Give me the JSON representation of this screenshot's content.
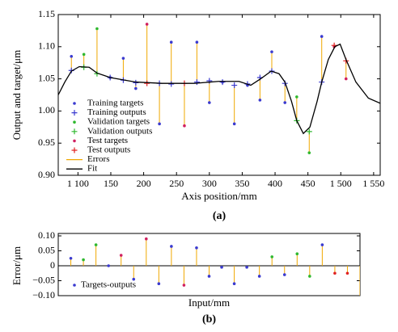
{
  "chart_data": [
    {
      "type": "scatter-errors",
      "xlabel": "Axis position/mm",
      "ylabel": "Output and target/μm",
      "caption": "(a)",
      "xlim": [
        1070,
        1560
      ],
      "ylim": [
        0.9,
        1.15
      ],
      "xticks": [
        {
          "value": 1100,
          "label": "1 100"
        },
        {
          "value": 1150,
          "label": "150"
        },
        {
          "value": 1200,
          "label": "200"
        },
        {
          "value": 1250,
          "label": "250"
        },
        {
          "value": 1300,
          "label": "300"
        },
        {
          "value": 1350,
          "label": "350"
        },
        {
          "value": 1400,
          "label": "400"
        },
        {
          "value": 1450,
          "label": "450"
        },
        {
          "value": 1500,
          "label": "1 500"
        },
        {
          "value": 1550,
          "label": "1 550"
        }
      ],
      "yticks": [
        {
          "value": 0.9,
          "label": "0.90"
        },
        0.95,
        {
          "value": 1.0,
          "label": "1.00"
        },
        1.05,
        {
          "value": 1.1,
          "label": "1.10"
        },
        1.15
      ],
      "series": [
        {
          "name": "Training targets",
          "color": "#3a3ad0",
          "marker": "dot",
          "x": [
            1090,
            1149,
            1169,
            1188,
            1224,
            1242,
            1281,
            1300,
            1320,
            1338,
            1358,
            1377,
            1395,
            1415,
            1471
          ],
          "values": [
            1.085,
            1.052,
            1.082,
            1.035,
            0.98,
            1.107,
            1.107,
            1.013,
            1.045,
            0.98,
            1.04,
            1.017,
            1.092,
            1.013,
            1.116
          ]
        },
        {
          "name": "Training outputs",
          "color": "#3a3ad0",
          "marker": "plus",
          "x": [
            1090,
            1149,
            1169,
            1188,
            1224,
            1242,
            1281,
            1300,
            1320,
            1338,
            1358,
            1377,
            1395,
            1415,
            1471
          ],
          "values": [
            1.063,
            1.052,
            1.048,
            1.044,
            1.043,
            1.042,
            1.045,
            1.047,
            1.045,
            1.04,
            1.042,
            1.052,
            1.062,
            1.043,
            1.045
          ]
        },
        {
          "name": "Validation targets",
          "color": "#2fb82f",
          "marker": "dot",
          "x": [
            1109,
            1129,
            1433,
            1452
          ],
          "values": [
            1.088,
            1.128,
            1.022,
            0.935
          ]
        },
        {
          "name": "Validation outputs",
          "color": "#2fb82f",
          "marker": "plus",
          "x": [
            1109,
            1129,
            1433,
            1452
          ],
          "values": [
            1.068,
            1.058,
            0.985,
            0.968
          ]
        },
        {
          "name": "Test targets",
          "color": "#d02060",
          "marker": "dot",
          "x": [
            1205,
            1262,
            1490,
            1508
          ],
          "values": [
            1.135,
            0.977,
            1.1,
            1.05
          ]
        },
        {
          "name": "Test outputs",
          "color": "#e02020",
          "marker": "plus",
          "x": [
            1205,
            1262,
            1490,
            1508
          ],
          "values": [
            1.043,
            1.043,
            1.102,
            1.078
          ]
        },
        {
          "name": "Errors",
          "color": "#f0a800",
          "marker": "errors"
        },
        {
          "name": "Fit",
          "color": "#000000",
          "marker": "line",
          "x": [
            1070,
            1080,
            1090,
            1102,
            1117,
            1129,
            1149,
            1188,
            1228,
            1277,
            1314,
            1345,
            1363,
            1378,
            1394,
            1406,
            1415,
            1425,
            1433,
            1443,
            1453,
            1464,
            1471,
            1481,
            1491,
            1499,
            1508,
            1523,
            1542,
            1560
          ],
          "values": [
            1.025,
            1.045,
            1.062,
            1.069,
            1.068,
            1.059,
            1.052,
            1.045,
            1.043,
            1.043,
            1.046,
            1.046,
            1.04,
            1.05,
            1.062,
            1.058,
            1.045,
            1.015,
            0.985,
            0.965,
            0.975,
            1.015,
            1.045,
            1.08,
            1.1,
            1.104,
            1.08,
            1.045,
            1.02,
            1.012
          ]
        }
      ]
    },
    {
      "type": "stem",
      "xlabel": "Input/mm",
      "ylabel": "Error/μm",
      "caption": "(b)",
      "xlim": [
        0,
        24
      ],
      "ylim": [
        -0.1,
        0.1
      ],
      "yticks": [
        {
          "value": -0.1,
          "label": "−0.10"
        },
        {
          "value": -0.05,
          "label": "−0.05"
        },
        0,
        0.05,
        {
          "value": 0.1,
          "label": "0.10"
        }
      ],
      "stem_color": "#f0a800",
      "series": [
        {
          "name": "Targets-outputs",
          "color": "#3a3ad0",
          "x": [
            1,
            2,
            3,
            4,
            5,
            6,
            7,
            8,
            9,
            10,
            11,
            12,
            13,
            14,
            15,
            16,
            17,
            18,
            19,
            20,
            21,
            22,
            23,
            24
          ],
          "values": [
            0.025,
            0.02,
            0.07,
            0.0,
            0.035,
            -0.045,
            0.09,
            -0.06,
            0.065,
            -0.065,
            0.06,
            -0.035,
            -0.005,
            -0.06,
            -0.005,
            -0.035,
            0.03,
            -0.03,
            0.04,
            -0.035,
            0.07,
            -0.025,
            -0.025,
            -0.11
          ],
          "point_colors": [
            "#3a3ad0",
            "#2fb82f",
            "#2fb82f",
            "#3a3ad0",
            "#d02060",
            "#3a3ad0",
            "#d02060",
            "#3a3ad0",
            "#3a3ad0",
            "#d02060",
            "#3a3ad0",
            "#3a3ad0",
            "#3a3ad0",
            "#3a3ad0",
            "#3a3ad0",
            "#3a3ad0",
            "#2fb82f",
            "#3a3ad0",
            "#2fb82f",
            "#2fb82f",
            "#3a3ad0",
            "#e02020",
            "#e02020",
            "#3a3ad0"
          ]
        }
      ]
    }
  ]
}
